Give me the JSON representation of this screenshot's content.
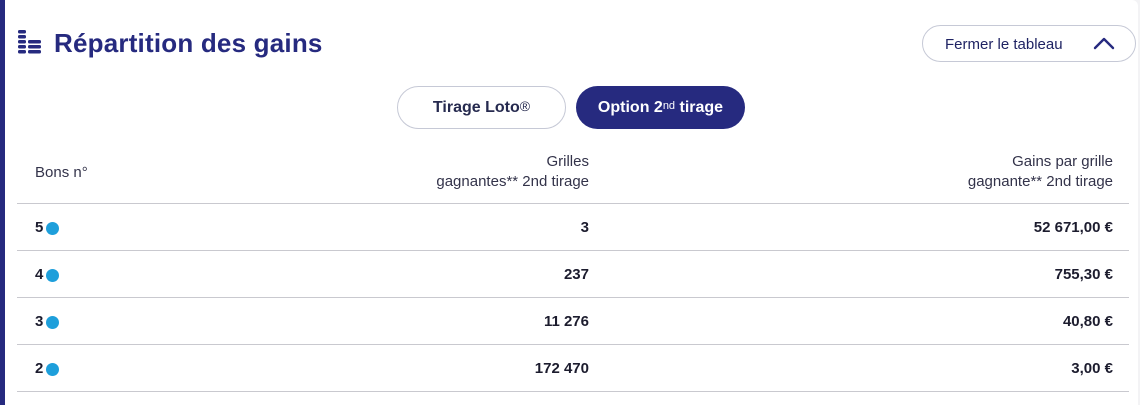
{
  "header": {
    "title": "Répartition des gains",
    "close_label": "Fermer le tableau"
  },
  "tabs": [
    {
      "label": "Tirage Loto",
      "sup": "®",
      "active": false
    },
    {
      "label_a": "Option 2",
      "sup": "nd",
      "label_b": " tirage",
      "active": true
    }
  ],
  "table": {
    "headers": {
      "bons": "Bons n°",
      "grilles_line1": "Grilles",
      "grilles_line2": "gagnantes** 2nd tirage",
      "gains_line1": "Gains par grille",
      "gains_line2": "gagnante** 2nd tirage"
    },
    "rows": [
      {
        "bons": "5",
        "grilles": "3",
        "gains": "52 671,00 €"
      },
      {
        "bons": "4",
        "grilles": "237",
        "gains": "755,30 €"
      },
      {
        "bons": "3",
        "grilles": "11 276",
        "gains": "40,80 €"
      },
      {
        "bons": "2",
        "grilles": "172 470",
        "gains": "3,00 €"
      }
    ]
  },
  "colors": {
    "accent": "#262a7f",
    "ball": "#1e9fdb"
  }
}
